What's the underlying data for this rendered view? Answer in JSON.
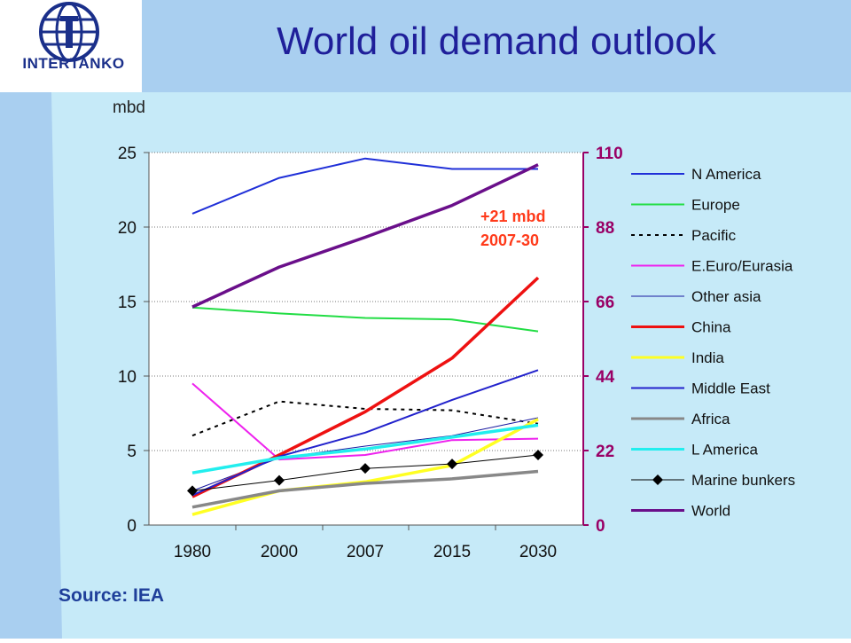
{
  "slide": {
    "title": "World oil demand outlook",
    "unit": "mbd",
    "source": "Source: IEA",
    "logo_text": "INTERTANKO",
    "annotation": [
      "+21 mbd",
      "2007-30"
    ]
  },
  "colors": {
    "background_light": "#c6eaf8",
    "background_band": "#a9cff0",
    "title": "#1f1f9a",
    "secondary_axis": "#990066",
    "annotation": "#ff3a1a"
  },
  "chart_data": {
    "type": "line",
    "title": "World oil demand outlook",
    "ylabel": "mbd",
    "categories": [
      "1980",
      "2000",
      "2007",
      "2015",
      "2030"
    ],
    "ylim": [
      0,
      25
    ],
    "yticks": [
      "0",
      "5",
      "10",
      "15",
      "20",
      "25"
    ],
    "y2lim": [
      0,
      110
    ],
    "y2ticks": [
      "0",
      "22",
      "44",
      "66",
      "88",
      "110"
    ],
    "grid": "horizontal dotted",
    "legend_position": "right",
    "series": [
      {
        "name": "N America",
        "values": [
          20.9,
          23.3,
          24.6,
          23.9,
          23.9
        ],
        "color": "#1f2fd8",
        "width": 2,
        "dash": "",
        "axis": "left"
      },
      {
        "name": "Europe",
        "values": [
          14.6,
          14.2,
          13.9,
          13.8,
          13.0
        ],
        "color": "#22dd44",
        "width": 2,
        "dash": "",
        "axis": "left"
      },
      {
        "name": "Pacific",
        "values": [
          6.0,
          8.3,
          7.8,
          7.7,
          6.8
        ],
        "color": "#000000",
        "width": 2,
        "dash": "4 5",
        "axis": "left"
      },
      {
        "name": "E.Euro/Eurasia",
        "values": [
          9.5,
          4.4,
          4.7,
          5.7,
          5.8
        ],
        "color": "#ee22ee",
        "width": 2,
        "dash": "",
        "axis": "left"
      },
      {
        "name": "Other asia",
        "values": [
          2.3,
          4.5,
          5.3,
          6.0,
          7.2
        ],
        "color": "#1a1aa0",
        "width": 1,
        "dash": "",
        "axis": "left"
      },
      {
        "name": "China",
        "values": [
          1.9,
          4.7,
          7.6,
          11.2,
          16.6
        ],
        "color": "#ee1111",
        "width": 3.5,
        "dash": "",
        "axis": "left"
      },
      {
        "name": "India",
        "values": [
          0.7,
          2.3,
          2.9,
          4.0,
          7.1
        ],
        "color": "#ffff22",
        "width": 3.5,
        "dash": "",
        "axis": "left"
      },
      {
        "name": "Middle East",
        "values": [
          2.0,
          4.6,
          6.2,
          8.4,
          10.4
        ],
        "color": "#2222cc",
        "width": 2,
        "dash": "",
        "axis": "left"
      },
      {
        "name": "Africa",
        "values": [
          1.2,
          2.3,
          2.8,
          3.1,
          3.6
        ],
        "color": "#888888",
        "width": 3.5,
        "dash": "",
        "axis": "left"
      },
      {
        "name": "L America",
        "values": [
          3.5,
          4.5,
          5.1,
          5.9,
          6.7
        ],
        "color": "#22eeee",
        "width": 3.5,
        "dash": "",
        "axis": "left"
      },
      {
        "name": "Marine bunkers",
        "values": [
          2.3,
          3.0,
          3.8,
          4.1,
          4.7
        ],
        "color": "#000000",
        "width": 1,
        "dash": "",
        "axis": "left",
        "marker": "diamond"
      },
      {
        "name": "World",
        "values": [
          64.4,
          76.2,
          85.0,
          94.4,
          106.4
        ],
        "color": "#6a0f8a",
        "width": 3.5,
        "dash": "",
        "axis": "right"
      }
    ]
  }
}
